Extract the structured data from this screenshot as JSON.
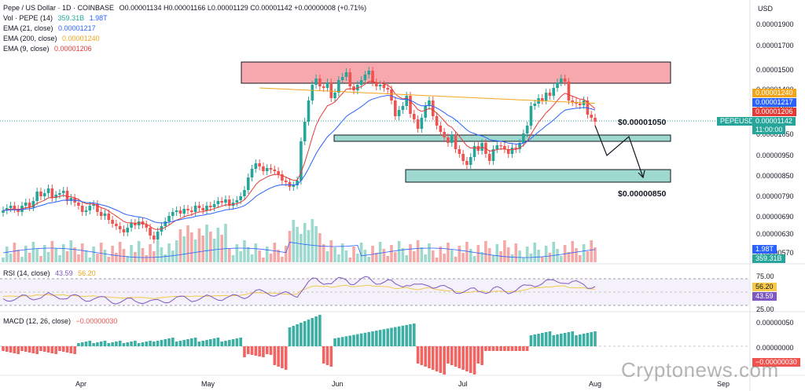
{
  "header": {
    "title": "Pepe / US Dollar · 1D · COINBASE",
    "ohlc": "O0.00001134 H0.00001166 L0.00001129 C0.00001142 +0.00000008 (+0.71%)",
    "vol_label": "Vol · PEPE (14)",
    "vol_val1": "359.31B",
    "vol_val2": "1.98T",
    "ema21_label": "EMA (21, close)",
    "ema21_val": "0.00001217",
    "ema200_label": "EMA (200, close)",
    "ema200_val": "0.00001240",
    "ema9_label": "EMA (9, close)",
    "ema9_val": "0.00001206",
    "currency": "USD"
  },
  "price_axis": [
    "0.00001900",
    "0.00001700",
    "0.00001500",
    "0.00001400",
    "0.00001300",
    "0.00001050",
    "0.00000950",
    "0.00000850",
    "0.00000790",
    "0.00000690",
    "0.00000630",
    "0.00000570"
  ],
  "tags": {
    "ema200": "0.00001240",
    "ema21": "0.00001217",
    "ema9": "0.00001206",
    "symbol": "PEPEUSD",
    "last": "0.00001142",
    "countdown": "11:00:00",
    "vol_ma": "1.98T",
    "vol": "359.31B"
  },
  "annotations": {
    "level1": "$0.00001050",
    "level2": "$0.00000850"
  },
  "rsi": {
    "label": "RSI (14, close)",
    "val1": "43.59",
    "val2": "56.20",
    "axis": [
      "75.00",
      "25.00"
    ]
  },
  "macd": {
    "label": "MACD (12, 26, close)",
    "val": "−0.00000030",
    "axis": [
      "0.00000050",
      "0.00000000"
    ],
    "tag": "−0.00000030"
  },
  "time_axis": [
    "Apr",
    "May",
    "Jun",
    "Jul",
    "Aug",
    "Sep"
  ],
  "watermark": "Cryptonews.com",
  "colors": {
    "up": "#26a69a",
    "down": "#ef5350",
    "ema9": "#e53935",
    "ema21": "#2962ff",
    "ema200": "#f2a51a",
    "rsi": "#7e57c2",
    "resistance": "#f7a8ad",
    "support": "#9ed9cf"
  },
  "chart_data": {
    "type": "candlestick",
    "ylabel": "USD",
    "x": [
      "Apr",
      "May",
      "Jun",
      "Jul",
      "Aug",
      "Sep"
    ],
    "close_approx": [
      7.3e-06,
      7.2e-06,
      7.5e-06,
      7.8e-06,
      8e-06,
      8.3e-06,
      8.9e-06,
      8.6e-06,
      8.1e-06,
      8.5e-06,
      1.23e-05,
      1.47e-05,
      1.4e-05,
      1.4e-05,
      1.52e-05,
      1.43e-05,
      1.22e-05,
      1.13e-05,
      1.09e-05,
      1.02e-05,
      9.5e-06,
      8.9e-06,
      9.1e-06,
      1.04e-05,
      1.21e-05,
      1.36e-05,
      1.44e-05,
      1.27e-05,
      1.14e-05
    ],
    "annotation_levels": [
      1.05e-05,
      8.5e-06
    ]
  }
}
